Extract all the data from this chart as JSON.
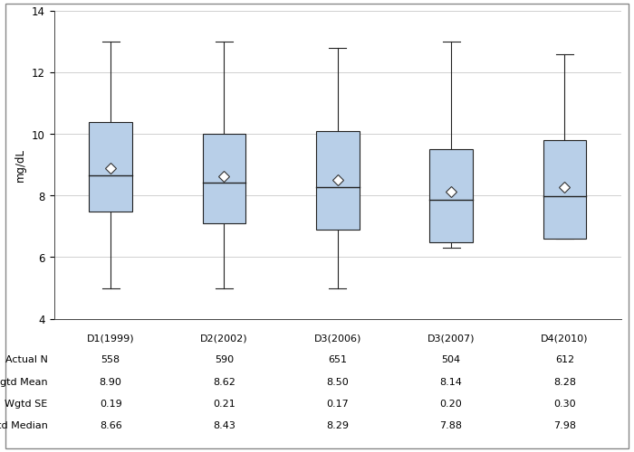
{
  "ylabel": "mg/dL",
  "categories": [
    "D1(1999)",
    "D2(2002)",
    "D3(2006)",
    "D3(2007)",
    "D4(2010)"
  ],
  "box_data": [
    {
      "whislo": 5.0,
      "q1": 7.5,
      "med": 8.66,
      "q3": 10.4,
      "whishi": 13.0,
      "mean": 8.9
    },
    {
      "whislo": 5.0,
      "q1": 7.1,
      "med": 8.43,
      "q3": 10.0,
      "whishi": 13.0,
      "mean": 8.62
    },
    {
      "whislo": 5.0,
      "q1": 6.9,
      "med": 8.29,
      "q3": 10.1,
      "whishi": 12.8,
      "mean": 8.5
    },
    {
      "whislo": 6.3,
      "q1": 6.5,
      "med": 7.88,
      "q3": 9.5,
      "whishi": 13.0,
      "mean": 8.14
    },
    {
      "whislo": 6.6,
      "q1": 6.6,
      "med": 7.98,
      "q3": 9.8,
      "whishi": 12.6,
      "mean": 8.28
    }
  ],
  "table_rows": [
    {
      "label": "Actual N",
      "values": [
        "558",
        "590",
        "651",
        "504",
        "612"
      ]
    },
    {
      "label": "Wgtd Mean",
      "values": [
        "8.90",
        "8.62",
        "8.50",
        "8.14",
        "8.28"
      ]
    },
    {
      "label": "Wgtd SE",
      "values": [
        "0.19",
        "0.21",
        "0.17",
        "0.20",
        "0.30"
      ]
    },
    {
      "label": "Wgtd Median",
      "values": [
        "8.66",
        "8.43",
        "8.29",
        "7.88",
        "7.98"
      ]
    }
  ],
  "box_color": "#b8cfe8",
  "box_edge_color": "#222222",
  "whisker_color": "#222222",
  "median_color": "#222222",
  "mean_marker_facecolor": "white",
  "mean_marker_edgecolor": "#333333",
  "ylim": [
    4,
    14
  ],
  "yticks": [
    4,
    6,
    8,
    10,
    12,
    14
  ],
  "grid_color": "#d0d0d0",
  "background_color": "white",
  "table_fontsize": 8.0,
  "axis_fontsize": 8.5,
  "box_width": 0.38,
  "cap_ratio": 0.4
}
